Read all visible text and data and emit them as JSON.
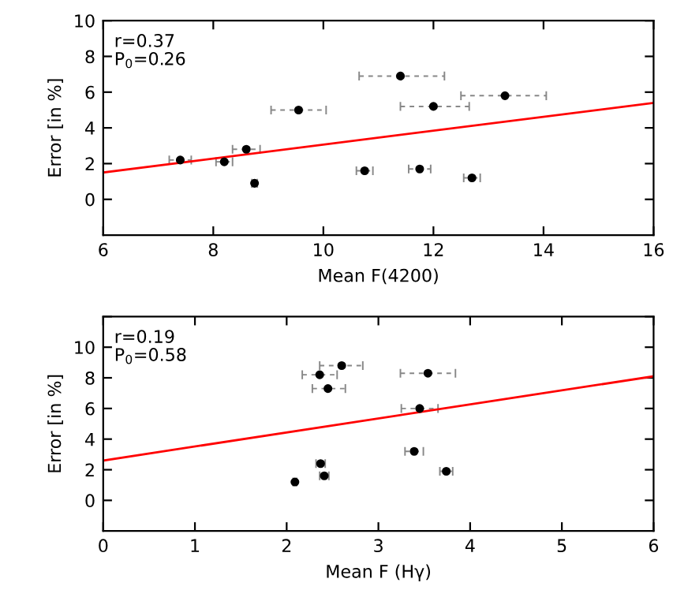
{
  "chart_data": [
    {
      "type": "scatter",
      "xlabel": "Mean F(4200)",
      "ylabel": "Error [in %]",
      "xlim": [
        6,
        16
      ],
      "ylim": [
        -2,
        10
      ],
      "xticks": [
        6,
        8,
        10,
        12,
        14,
        16
      ],
      "yticks": [
        0,
        2,
        4,
        6,
        8,
        10
      ],
      "annotations": [
        "r=0.37",
        "P$_{0}$=0.26"
      ],
      "grid": false,
      "legend": false,
      "series": [
        {
          "color": "#000000",
          "marker": "circle",
          "x": [
            7.4,
            8.2,
            8.6,
            8.75,
            9.55,
            10.75,
            11.4,
            12.0,
            11.75,
            12.7,
            13.3
          ],
          "values": [
            2.2,
            2.1,
            2.8,
            0.9,
            5.0,
            1.6,
            6.9,
            5.2,
            1.7,
            1.2,
            5.8
          ],
          "xerrors": [
            0.2,
            0.15,
            0.25,
            0.05,
            0.5,
            0.15,
            [
              10.65,
              12.2
            ],
            [
              11.4,
              12.65
            ],
            0.2,
            0.15,
            [
              12.5,
              14.05
            ]
          ]
        },
        {
          "type": "line",
          "color": "#ff0000",
          "marker": "none",
          "x": [
            6,
            16
          ],
          "values": [
            1.5,
            5.4
          ]
        }
      ]
    },
    {
      "type": "scatter",
      "xlabel": "Mean F (Hγ)",
      "ylabel": "Error [in %]",
      "xlim": [
        0,
        6
      ],
      "ylim": [
        -2,
        12
      ],
      "xticks": [
        0,
        1,
        2,
        3,
        4,
        5,
        6
      ],
      "yticks": [
        0,
        2,
        4,
        6,
        8,
        10,
        {
          "value": 12,
          "label": null
        }
      ],
      "annotations": [
        "r=0.19",
        "P$_{0}$=0.58"
      ],
      "grid": false,
      "legend": false,
      "series": [
        {
          "color": "#000000",
          "marker": "circle",
          "x": [
            2.09,
            2.37,
            2.41,
            2.45,
            2.36,
            2.6,
            3.45,
            3.39,
            3.54,
            3.74
          ],
          "values": [
            1.2,
            2.4,
            1.6,
            7.3,
            8.2,
            8.8,
            6.0,
            3.2,
            8.3,
            1.9
          ],
          "xerrors": [
            0.02,
            0.05,
            0.05,
            [
              2.28,
              2.64
            ],
            [
              2.17,
              2.55
            ],
            [
              2.36,
              2.83
            ],
            [
              3.25,
              3.65
            ],
            0.1,
            [
              3.24,
              3.84
            ],
            0.07
          ]
        },
        {
          "type": "line",
          "color": "#ff0000",
          "marker": "none",
          "x": [
            0,
            6
          ],
          "values": [
            2.6,
            8.1
          ]
        }
      ]
    }
  ]
}
